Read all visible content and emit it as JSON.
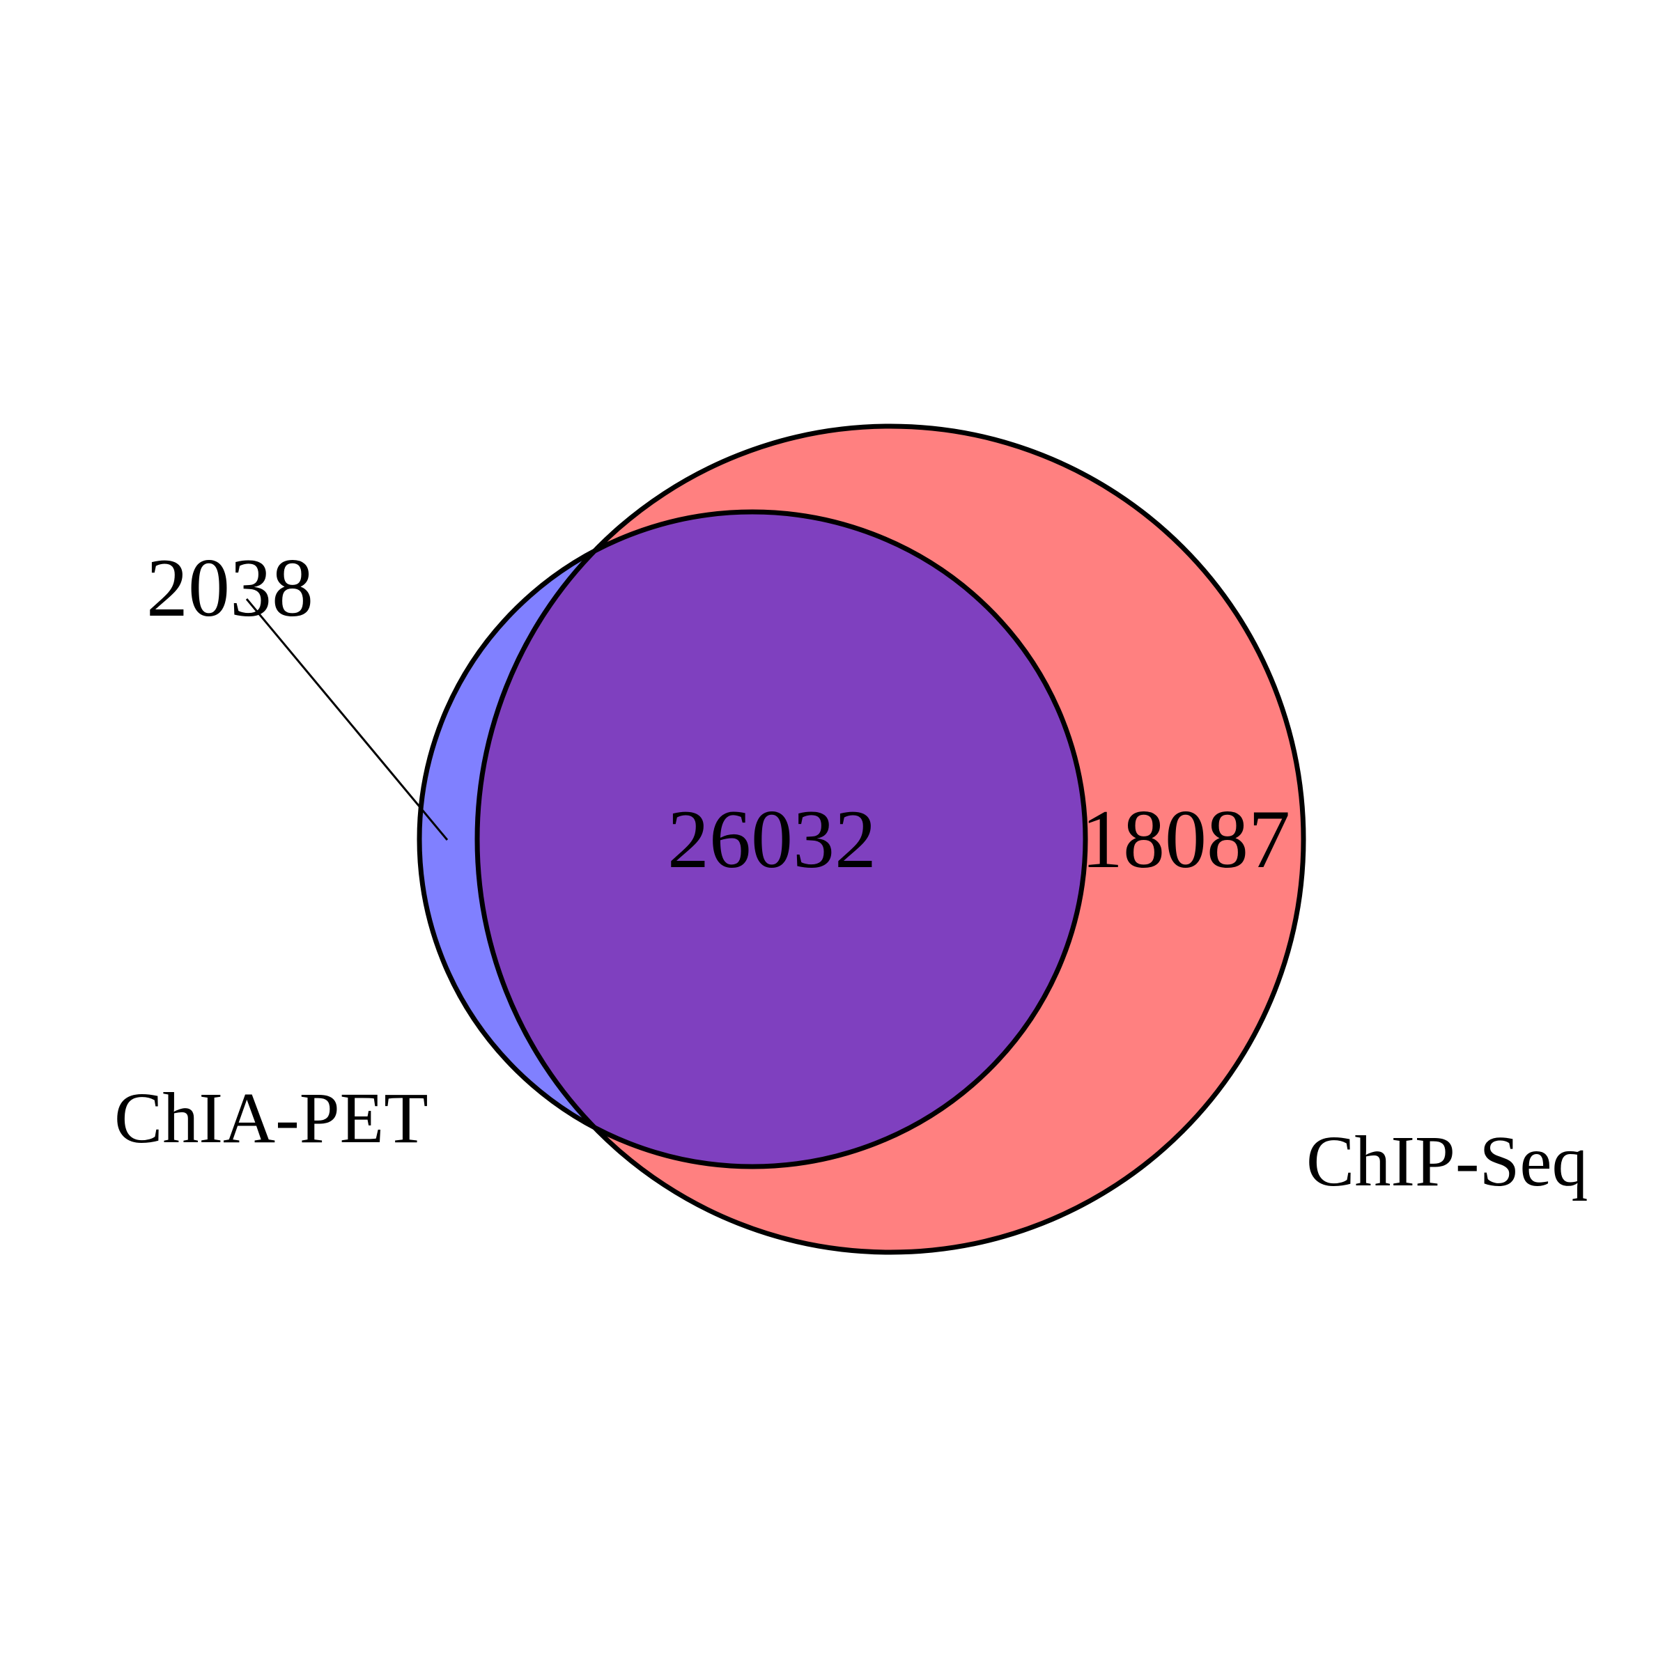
{
  "diagram": {
    "type": "venn",
    "sets": [
      {
        "key": "chia_pet",
        "label": "ChIA-PET",
        "color": "#8080FF"
      },
      {
        "key": "chip_seq",
        "label": "ChIP-Seq",
        "color": "#FF8080"
      }
    ],
    "overlap_color": "#7F40BF",
    "outline_color": "#000000",
    "counts": {
      "chia_pet_only": "2038",
      "both": "26032",
      "chip_seq_only": "18087"
    }
  }
}
